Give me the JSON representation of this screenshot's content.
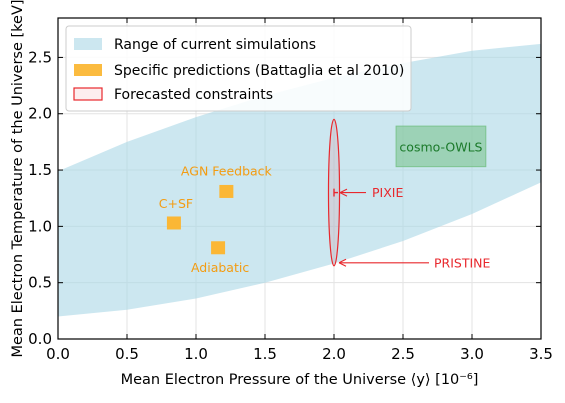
{
  "chart_data": {
    "type": "scatter",
    "xlabel": "Mean Electron Pressure of the Universe ⟨y⟩ [10⁻⁶]",
    "ylabel": "Mean Electron Temperature of the Universe [keV]",
    "xlim": [
      0.0,
      3.5
    ],
    "ylim": [
      0.0,
      2.85
    ],
    "xticks": [
      "0.0",
      "0.5",
      "1.0",
      "1.5",
      "2.0",
      "2.5",
      "3.0",
      "3.5"
    ],
    "yticks": [
      "0.0",
      "0.5",
      "1.0",
      "1.5",
      "2.0",
      "2.5"
    ],
    "grid": true,
    "legend": {
      "placement": "top-left",
      "entries": [
        {
          "label": "Range of current simulations",
          "color": "#add8e6"
        },
        {
          "label": "Specific predictions (Battaglia et al 2010)",
          "color": "#fbb735"
        },
        {
          "label": "Forecasted constraints",
          "color": "#e8282d"
        }
      ]
    },
    "band": {
      "x": [
        0.0,
        0.5,
        1.0,
        1.5,
        2.0,
        2.5,
        3.0,
        3.5
      ],
      "lower": [
        0.2,
        0.26,
        0.36,
        0.5,
        0.67,
        0.87,
        1.11,
        1.39
      ],
      "upper": [
        1.49,
        1.75,
        1.97,
        2.16,
        2.32,
        2.45,
        2.56,
        2.62
      ]
    },
    "predictions": [
      {
        "label": "AGN Feedback",
        "x": 1.22,
        "y": 1.31
      },
      {
        "label": "C+SF",
        "x": 0.84,
        "y": 1.03
      },
      {
        "label": "Adiabatic",
        "x": 1.16,
        "y": 0.81
      }
    ],
    "region": {
      "label": "cosmo-OWLS",
      "x": [
        2.45,
        3.1
      ],
      "y": [
        1.53,
        1.89
      ]
    },
    "constraints": [
      {
        "label": "PIXIE",
        "x": 2.0,
        "y": 1.3,
        "x_err": 0.015,
        "y_err": 0.035
      },
      {
        "label": "PRISTINE",
        "x": 2.0,
        "y": 1.3,
        "x_err": 0.04,
        "y_err": 0.65
      }
    ],
    "colors": {
      "band": "#add8e6",
      "prediction": "#fbb735",
      "prediction_text": "#f39c12",
      "constraint": "#e8282d",
      "region_fill": "#7cc48f",
      "region_text": "#1b7a2a"
    }
  }
}
